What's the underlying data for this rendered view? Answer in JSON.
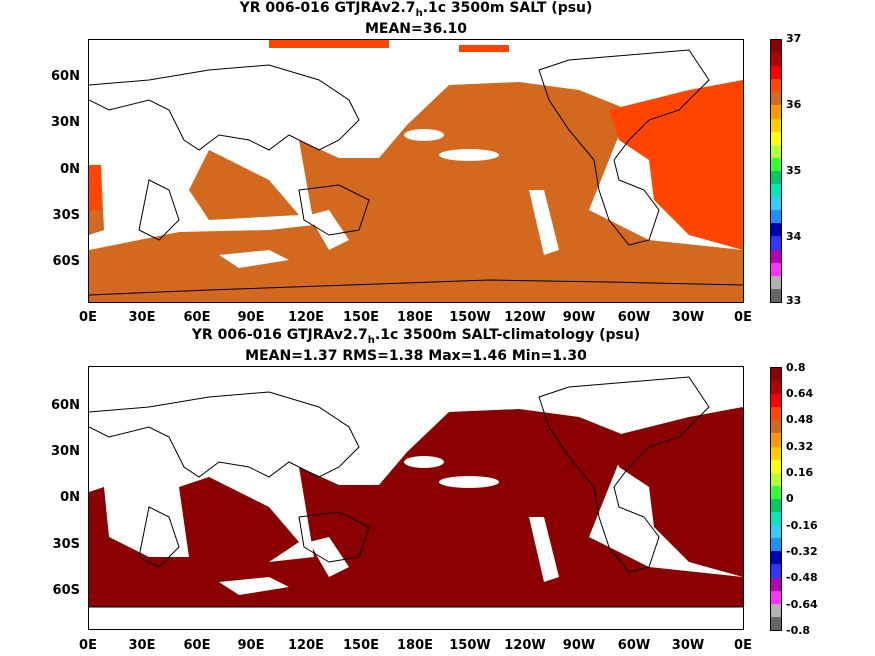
{
  "panels": [
    {
      "title_pre": "YR 006-016 GTJRAv2.7",
      "title_sub": "h",
      "title_post": ".1c 3500m SALT (psu)",
      "stats": "MEAN=36.10",
      "fill_colors": [
        "#d2691e",
        "#ff4500"
      ],
      "colorbar": {
        "colors": [
          "#666666",
          "#b3b3b3",
          "#ff33ff",
          "#b300b3",
          "#3333ff",
          "#0000b3",
          "#1e90ff",
          "#33ccff",
          "#00e6b8",
          "#00cc66",
          "#33ff33",
          "#b3ff33",
          "#ffff00",
          "#ffcc00",
          "#ff9900",
          "#d2691e",
          "#ff4500",
          "#ff0000",
          "#b30000",
          "#8b0000"
        ],
        "labels": [
          "37",
          "36",
          "35",
          "34",
          "33"
        ]
      }
    },
    {
      "title_pre": "YR 006-016 GTJRAv2.7",
      "title_sub": "h",
      "title_post": ".1c 3500m SALT-climatology (psu)",
      "stats": "MEAN=1.37   RMS=1.38   Max=1.46   Min=1.30",
      "fill_colors": [
        "#8b0000",
        "#8b0000"
      ],
      "colorbar": {
        "colors": [
          "#666666",
          "#b3b3b3",
          "#ff33ff",
          "#b300b3",
          "#3333ff",
          "#0000b3",
          "#1e90ff",
          "#33ccff",
          "#00e6b8",
          "#00cc66",
          "#33ff33",
          "#b3ff33",
          "#ffff00",
          "#ffcc00",
          "#ff9900",
          "#d2691e",
          "#ff4500",
          "#ff0000",
          "#b30000",
          "#8b0000"
        ],
        "labels": [
          "0.8",
          "0.64",
          "0.48",
          "0.32",
          "0.16",
          "0",
          "-0.16",
          "-0.32",
          "-0.48",
          "-0.64",
          "-0.8"
        ]
      }
    }
  ],
  "lat_labels": [
    "60N",
    "30N",
    "0N",
    "30S",
    "60S"
  ],
  "lon_labels": [
    "0E",
    "30E",
    "60E",
    "90E",
    "120E",
    "150E",
    "180E",
    "150W",
    "120W",
    "90W",
    "60W",
    "30W",
    "0E"
  ]
}
